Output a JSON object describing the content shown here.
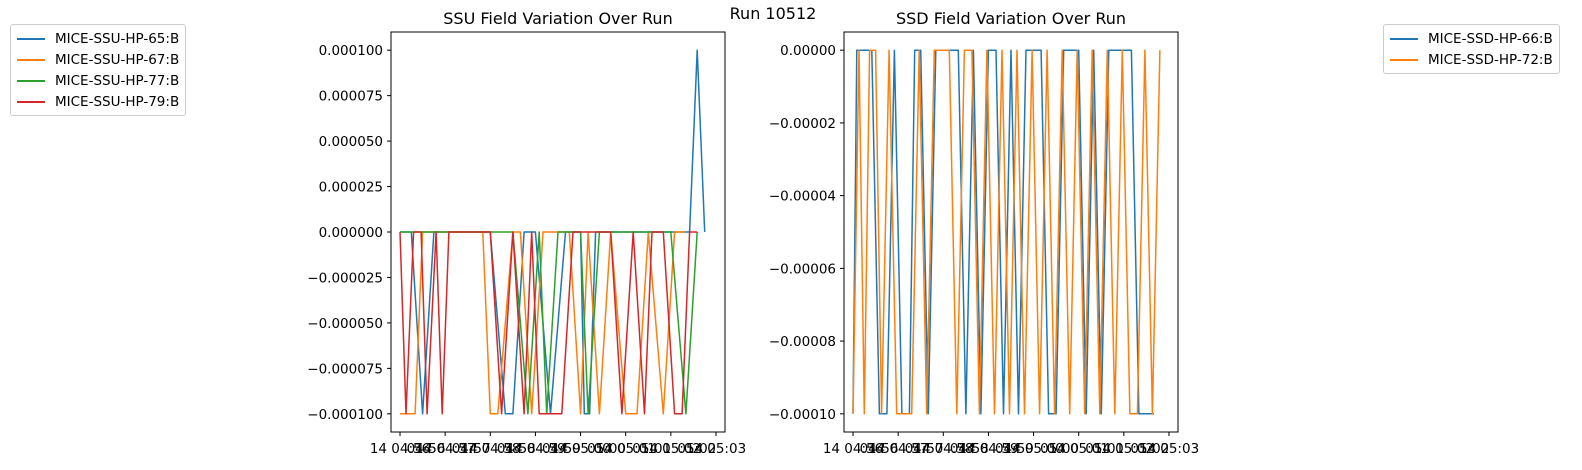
{
  "suptitle": "Run 10512",
  "chart_data": [
    {
      "type": "line",
      "title": "SSU Field Variation Over Run",
      "xlabel": "",
      "ylabel": "",
      "x_ticks": [
        "14 04:56",
        "14 04:57",
        "14 04:58",
        "14 04:59",
        "14 05:00",
        "14 05:01",
        "14 05:02",
        "14 05:03"
      ],
      "x_tick_overlays": [
        "04:56",
        "04:57",
        "04:58",
        "04:59",
        "05:00",
        "05:01",
        "05:02",
        ""
      ],
      "xlim": [
        "04:55:48",
        "05:03:12"
      ],
      "ylim": [
        -0.00011,
        0.00011
      ],
      "y_ticks": [
        "0.000100",
        "0.000075",
        "0.000050",
        "0.000025",
        "0.000000",
        "−0.000025",
        "−0.000050",
        "−0.000075",
        "−0.000100"
      ],
      "legend_position": "upper-left, outside figure",
      "series": [
        {
          "name": "MICE-SSU-HP-65:B",
          "color": "#1f77b4",
          "x": [
            "04:56:00",
            "04:56:15",
            "04:56:30",
            "04:56:45",
            "04:57:00",
            "04:57:30",
            "04:58:00",
            "04:58:20",
            "04:58:30",
            "04:58:45",
            "04:59:00",
            "04:59:20",
            "04:59:40",
            "05:00:00",
            "05:00:05",
            "05:00:12",
            "05:00:20",
            "05:00:45",
            "05:01:10",
            "05:01:40",
            "05:02:10",
            "05:02:25",
            "05:02:35",
            "05:02:45"
          ],
          "y": [
            0,
            0,
            -0.0001,
            0,
            0,
            0,
            0,
            -0.0001,
            -0.0001,
            0,
            0,
            -0.0001,
            0,
            0,
            -0.0001,
            -0.0001,
            0,
            0,
            0,
            0,
            0,
            0,
            0.0001,
            0
          ]
        },
        {
          "name": "MICE-SSU-HP-67:B",
          "color": "#ff7f0e",
          "x": [
            "04:56:00",
            "04:56:10",
            "04:56:20",
            "04:56:30",
            "04:56:45",
            "04:57:00",
            "04:57:30",
            "04:57:50",
            "04:58:00",
            "04:58:10",
            "04:58:30",
            "04:58:40",
            "04:58:55",
            "04:59:10",
            "04:59:30",
            "04:59:45",
            "05:00:00",
            "05:00:10",
            "05:00:25",
            "05:00:40",
            "05:01:00",
            "05:01:15",
            "05:01:30",
            "05:01:50",
            "05:02:05",
            "05:02:20"
          ],
          "y": [
            -0.0001,
            -0.0001,
            -0.0001,
            0,
            0,
            0,
            0,
            0,
            -0.0001,
            -0.0001,
            0,
            0,
            -0.0001,
            0,
            0,
            0,
            -0.0001,
            0,
            -0.0001,
            0,
            -0.0001,
            -0.0001,
            0,
            -0.0001,
            0,
            0
          ]
        },
        {
          "name": "MICE-SSU-HP-77:B",
          "color": "#2ca02c",
          "x": [
            "04:56:00",
            "04:57:00",
            "04:58:00",
            "04:58:30",
            "04:58:50",
            "04:59:05",
            "04:59:15",
            "04:59:30",
            "05:00:00",
            "05:00:10",
            "05:00:25",
            "05:00:40",
            "05:01:00",
            "05:01:30",
            "05:02:00",
            "05:02:20",
            "05:02:35"
          ],
          "y": [
            0,
            0,
            0,
            0,
            -0.0001,
            0,
            -0.0001,
            0,
            0,
            -0.0001,
            0,
            0,
            0,
            0,
            0,
            -0.0001,
            0
          ]
        },
        {
          "name": "MICE-SSU-HP-79:B",
          "color": "#d62728",
          "x": [
            "04:56:00",
            "04:56:08",
            "04:56:18",
            "04:56:28",
            "04:56:36",
            "04:56:48",
            "04:56:56",
            "04:57:05",
            "04:57:15",
            "04:57:30",
            "04:58:00",
            "04:58:15",
            "04:58:30",
            "04:58:45",
            "04:58:55",
            "04:59:05",
            "04:59:15",
            "04:59:25",
            "04:59:35",
            "04:59:50",
            "05:00:00",
            "05:00:20",
            "05:00:40",
            "05:00:55",
            "05:01:10",
            "05:01:25",
            "05:01:35",
            "05:01:50",
            "05:02:05",
            "05:02:15",
            "05:02:25",
            "05:02:35"
          ],
          "y": [
            0,
            -0.0001,
            0,
            0,
            -0.0001,
            0,
            -0.0001,
            0,
            0,
            0,
            0,
            -0.0001,
            0,
            -0.0001,
            0,
            -0.0001,
            -0.0001,
            -0.0001,
            -0.0001,
            0,
            0,
            0,
            0,
            -0.0001,
            0,
            -0.0001,
            0,
            0,
            -0.0001,
            -0.0001,
            0,
            0
          ]
        }
      ]
    },
    {
      "type": "line",
      "title": "SSD Field Variation Over Run",
      "xlabel": "",
      "ylabel": "",
      "x_ticks": [
        "14 04:56",
        "14 04:57",
        "14 04:58",
        "14 04:59",
        "14 05:00",
        "14 05:01",
        "14 05:02",
        "14 05:03"
      ],
      "x_tick_overlays": [
        "04:56",
        "04:57",
        "04:58",
        "04:59",
        "05:00",
        "05:01",
        "05:02",
        ""
      ],
      "xlim": [
        "04:55:48",
        "05:03:12"
      ],
      "ylim": [
        -0.000105,
        5e-06
      ],
      "y_ticks": [
        "0.00000",
        "−0.00002",
        "−0.00004",
        "−0.00006",
        "−0.00008",
        "−0.00010"
      ],
      "legend_position": "upper-right, outside figure",
      "series": [
        {
          "name": "MICE-SSD-HP-66:B",
          "color": "#1f77b4",
          "x": [
            "04:56:00",
            "04:56:05",
            "04:56:12",
            "04:56:25",
            "04:56:35",
            "04:56:45",
            "04:56:55",
            "04:57:05",
            "04:57:15",
            "04:57:22",
            "04:57:30",
            "04:57:40",
            "04:57:50",
            "04:58:00",
            "04:58:10",
            "04:58:20",
            "04:58:30",
            "04:58:40",
            "04:58:50",
            "04:59:00",
            "04:59:10",
            "04:59:20",
            "04:59:30",
            "04:59:40",
            "04:59:50",
            "05:00:00",
            "05:00:10",
            "05:00:20",
            "05:00:30",
            "05:00:40",
            "05:00:50",
            "05:01:00",
            "05:01:10",
            "05:01:20",
            "05:01:30",
            "05:01:40",
            "05:01:50",
            "05:02:00",
            "05:02:10",
            "05:02:20",
            "05:02:30",
            "05:02:40"
          ],
          "y": [
            -0.0001,
            0,
            0,
            0,
            -0.0001,
            -0.0001,
            0,
            -0.0001,
            -0.0001,
            0,
            0,
            -0.0001,
            0,
            0,
            0,
            0,
            -0.0001,
            0,
            -0.0001,
            0,
            0,
            -0.0001,
            0,
            -0.0001,
            0,
            0,
            0,
            -0.0001,
            -0.0001,
            0,
            0,
            0,
            -0.0001,
            0,
            -0.0001,
            0,
            0,
            0,
            0,
            -0.0001,
            -0.0001,
            -0.0001
          ]
        },
        {
          "name": "MICE-SSD-HP-72:B",
          "color": "#ff7f0e",
          "x": [
            "04:56:00",
            "04:56:08",
            "04:56:15",
            "04:56:22",
            "04:56:30",
            "04:56:38",
            "04:56:48",
            "04:56:58",
            "04:57:08",
            "04:57:18",
            "04:57:28",
            "04:57:38",
            "04:57:48",
            "04:57:58",
            "04:58:08",
            "04:58:18",
            "04:58:28",
            "04:58:38",
            "04:58:48",
            "04:58:58",
            "04:59:08",
            "04:59:18",
            "04:59:28",
            "04:59:38",
            "04:59:48",
            "04:59:58",
            "05:00:08",
            "05:00:18",
            "05:00:28",
            "05:00:38",
            "05:00:48",
            "05:00:58",
            "05:01:08",
            "05:01:18",
            "05:01:28",
            "05:01:38",
            "05:01:48",
            "05:01:58",
            "05:02:08",
            "05:02:18",
            "05:02:28",
            "05:02:38",
            "05:02:48"
          ],
          "y": [
            -0.0001,
            0,
            -0.0001,
            0,
            0,
            -0.0001,
            0,
            -0.0001,
            -0.0001,
            -0.0001,
            0,
            -0.0001,
            0,
            0,
            0,
            -0.0001,
            0,
            0,
            -0.0001,
            0,
            -0.0001,
            0,
            -0.0001,
            0,
            -0.0001,
            0,
            -0.0001,
            0,
            -0.0001,
            0,
            -0.0001,
            0,
            -0.0001,
            0,
            -0.0001,
            0,
            -0.0001,
            0,
            -0.0001,
            -0.0001,
            0,
            -0.0001,
            0
          ]
        }
      ]
    }
  ]
}
